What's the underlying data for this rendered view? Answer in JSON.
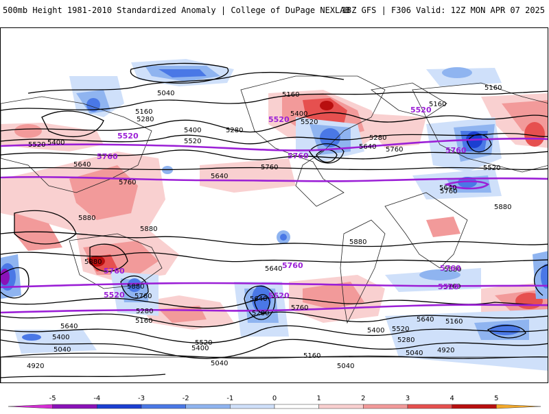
{
  "header": {
    "title": "500mb Height 1981-2010 Standardized Anomaly | College of DuPage NEXLAB",
    "run_info": "18Z GFS | F306 Valid: 12Z MON APR 07 2025"
  },
  "map": {
    "projection": "global cylindrical",
    "contour_color": "#000000",
    "highlight_contour_color": "#9b1fd6",
    "contour_labels": [
      "5040",
      "5160",
      "5280",
      "5400",
      "5520",
      "5640",
      "5760",
      "5880",
      "4920"
    ],
    "highlight_labels": [
      "5520",
      "5760"
    ]
  },
  "colorbar": {
    "ticks": [
      "-5",
      "-4",
      "-3",
      "-2",
      "-1",
      "0",
      "1",
      "2",
      "3",
      "4",
      "5"
    ],
    "colors": [
      "#d62dd6",
      "#8a12b8",
      "#1b3fd1",
      "#4a78e6",
      "#8fb4f0",
      "#cfe0fa",
      "#ffffff",
      "#f9d0d0",
      "#f29a9a",
      "#e6504f",
      "#b80f0f",
      "#f4a92a"
    ]
  }
}
